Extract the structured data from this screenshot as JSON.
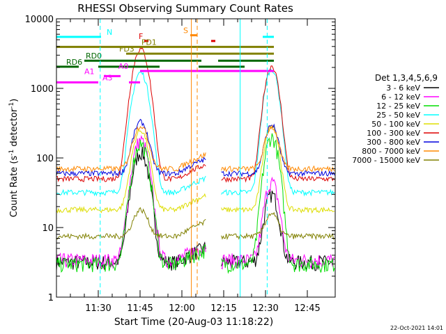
{
  "chart_data": {
    "type": "line",
    "title": "RHESSI Observing Summary Count Rates",
    "xlabel": "Start Time (20-Aug-03 11:18:22)",
    "ylabel_parts": [
      "Count Rate (s",
      "-1",
      " detector",
      "-1",
      ")"
    ],
    "yscale": "log",
    "ylim": [
      1,
      10000
    ],
    "xlim_minutes": [
      0,
      78
    ],
    "x_ticks": [
      {
        "label": "11:30",
        "t": 11.6
      },
      {
        "label": "11:45",
        "t": 26.6
      },
      {
        "label": "12:00",
        "t": 41.6
      },
      {
        "label": "12:15",
        "t": 56.6
      },
      {
        "label": "12:30",
        "t": 71.6
      },
      {
        "label": "12:45",
        "t": 86.6
      }
    ],
    "y_ticks": [
      {
        "label": "1",
        "v": 1
      },
      {
        "label": "10",
        "v": 10
      },
      {
        "label": "100",
        "v": 100
      },
      {
        "label": "1000",
        "v": 1000
      },
      {
        "label": "10000",
        "v": 10000
      }
    ],
    "legend_title": "Det 1,3,4,5,6,9",
    "legend_position": "right",
    "series": [
      {
        "name": "3 - 6 keV",
        "color": "#000000",
        "base": 3.2,
        "peak1": 120,
        "peak2": 30,
        "gap_val": 0.8
      },
      {
        "name": "6 - 12 keV",
        "color": "#ff00ff",
        "base": 3.4,
        "peak1": 180,
        "peak2": 45,
        "gap_val": 0.8
      },
      {
        "name": "12 - 25 keV",
        "color": "#00dd00",
        "base": 3.0,
        "peak1": 160,
        "peak2": 200,
        "gap_val": 0.8
      },
      {
        "name": "25 - 50 keV",
        "color": "#00ffff",
        "base": 32,
        "peak1": 1700,
        "peak2": 1900,
        "gap_val": 0.8
      },
      {
        "name": "50 - 100 keV",
        "color": "#dddd00",
        "base": 18,
        "peak1": 250,
        "peak2": 300,
        "gap_val": 0.8
      },
      {
        "name": "100 - 300 keV",
        "color": "#dd0000",
        "base": 50,
        "peak1": 3700,
        "peak2": 2100,
        "gap_val": 0.8
      },
      {
        "name": "300 - 800 keV",
        "color": "#0000dd",
        "base": 60,
        "peak1": 330,
        "peak2": 300,
        "gap_val": 0.8
      },
      {
        "name": "800 - 7000 keV",
        "color": "#ff8800",
        "base": 70,
        "peak1": 290,
        "peak2": 280,
        "gap_val": 0.8
      },
      {
        "name": "7000 - 15000 keV",
        "color": "#808000",
        "base": 7.5,
        "peak1": 18,
        "peak2": 16,
        "gap_val": 0.8
      }
    ],
    "flag_bars": [
      {
        "label": "N",
        "color": "#00ffff",
        "y": 5500,
        "segments": [
          [
            0,
            16
          ],
          [
            74,
            78
          ]
        ],
        "label_t": 18
      },
      {
        "label": "S",
        "color": "#ff8800",
        "y": 5800,
        "segments": [
          [
            48,
            50.5
          ]
        ],
        "label_t": 45.5
      },
      {
        "label": "F",
        "color": "#dd0000",
        "y": 4800,
        "segments": [
          [
            31.5,
            33
          ],
          [
            55.5,
            57
          ]
        ],
        "label_t": 29.5
      },
      {
        "label": "FD1",
        "color": "#808000",
        "y": 3950,
        "segments": [
          [
            0,
            78
          ]
        ],
        "label_t": 30.5
      },
      {
        "label": "FD3",
        "color": "#808000",
        "y": 3150,
        "segments": [
          [
            25,
            78
          ]
        ],
        "label_t": 22.5
      },
      {
        "label": "RD0",
        "color": "#006600",
        "y": 2500,
        "segments": [
          [
            10,
            52
          ],
          [
            58,
            78
          ]
        ],
        "label_t": 10.5
      },
      {
        "label": "RD6",
        "color": "#006600",
        "y": 2050,
        "segments": [
          [
            0,
            8
          ],
          [
            15,
            37
          ],
          [
            51,
            67.5
          ]
        ],
        "label_t": 3.5
      },
      {
        "label": "A1",
        "color": "#ff00ff",
        "y": 1500,
        "segments": [
          [
            17,
            23
          ]
        ],
        "label_t": 10
      },
      {
        "label": "A0",
        "color": "#ff00ff",
        "y": 1780,
        "segments": [
          [
            30,
            78
          ]
        ],
        "label_t": 22.2
      },
      {
        "label": "A3",
        "color": "#ff00ff",
        "y": 1220,
        "segments": [
          [
            26,
            30
          ]
        ],
        "label_t": 16.5
      },
      {
        "label": "",
        "color": "#ff00ff",
        "y": 1220,
        "segments": [
          [
            0,
            15
          ]
        ],
        "label_t": 0
      }
    ],
    "data_gap": {
      "start": 50.5,
      "end": 55.5
    },
    "event_lines": [
      {
        "t": 15.7,
        "color": "#00ffff",
        "style": "dashed"
      },
      {
        "t": 48.4,
        "color": "#ff8800",
        "style": "solid"
      },
      {
        "t": 50.5,
        "color": "#ff8800",
        "style": "dashed"
      },
      {
        "t": 65.9,
        "color": "#00ffff",
        "style": "solid"
      },
      {
        "t": 75.6,
        "color": "#00ffff",
        "style": "dashed"
      }
    ],
    "footer": "22-Oct-2021 14:01"
  }
}
